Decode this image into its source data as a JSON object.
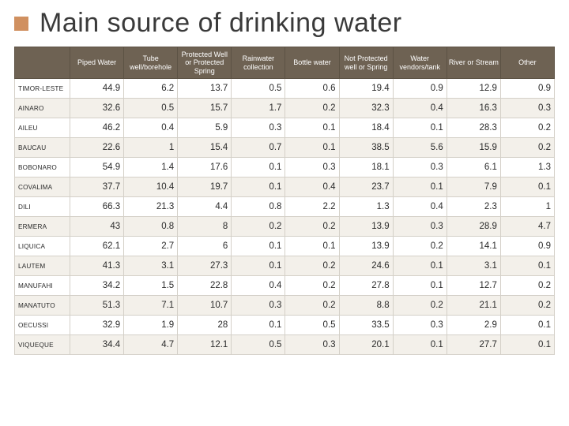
{
  "title": "Main source of drinking water",
  "columns": [
    "",
    "Piped Water",
    "Tube well/borehole",
    "Protected Well or Protected Spring",
    "Rainwater collection",
    "Bottle water",
    "Not Protected well or Spring",
    "Water vendors/tank",
    "River or Stream",
    "Other"
  ],
  "rows": [
    {
      "label": "TIMOR-LESTE",
      "v": [
        "44.9",
        "6.2",
        "13.7",
        "0.5",
        "0.6",
        "19.4",
        "0.9",
        "12.9",
        "0.9"
      ]
    },
    {
      "label": "AINARO",
      "v": [
        "32.6",
        "0.5",
        "15.7",
        "1.7",
        "0.2",
        "32.3",
        "0.4",
        "16.3",
        "0.3"
      ]
    },
    {
      "label": "AILEU",
      "v": [
        "46.2",
        "0.4",
        "5.9",
        "0.3",
        "0.1",
        "18.4",
        "0.1",
        "28.3",
        "0.2"
      ]
    },
    {
      "label": "BAUCAU",
      "v": [
        "22.6",
        "1",
        "15.4",
        "0.7",
        "0.1",
        "38.5",
        "5.6",
        "15.9",
        "0.2"
      ]
    },
    {
      "label": "BOBONARO",
      "v": [
        "54.9",
        "1.4",
        "17.6",
        "0.1",
        "0.3",
        "18.1",
        "0.3",
        "6.1",
        "1.3"
      ]
    },
    {
      "label": "COVALIMA",
      "v": [
        "37.7",
        "10.4",
        "19.7",
        "0.1",
        "0.4",
        "23.7",
        "0.1",
        "7.9",
        "0.1"
      ]
    },
    {
      "label": "DILI",
      "v": [
        "66.3",
        "21.3",
        "4.4",
        "0.8",
        "2.2",
        "1.3",
        "0.4",
        "2.3",
        "1"
      ]
    },
    {
      "label": "ERMERA",
      "v": [
        "43",
        "0.8",
        "8",
        "0.2",
        "0.2",
        "13.9",
        "0.3",
        "28.9",
        "4.7"
      ]
    },
    {
      "label": "LIQUICA",
      "v": [
        "62.1",
        "2.7",
        "6",
        "0.1",
        "0.1",
        "13.9",
        "0.2",
        "14.1",
        "0.9"
      ]
    },
    {
      "label": "LAUTEM",
      "v": [
        "41.3",
        "3.1",
        "27.3",
        "0.1",
        "0.2",
        "24.6",
        "0.1",
        "3.1",
        "0.1"
      ]
    },
    {
      "label": "MANUFAHI",
      "v": [
        "34.2",
        "1.5",
        "22.8",
        "0.4",
        "0.2",
        "27.8",
        "0.1",
        "12.7",
        "0.2"
      ]
    },
    {
      "label": "MANATUTO",
      "v": [
        "51.3",
        "7.1",
        "10.7",
        "0.3",
        "0.2",
        "8.8",
        "0.2",
        "21.1",
        "0.2"
      ]
    },
    {
      "label": "OECUSSI",
      "v": [
        "32.9",
        "1.9",
        "28",
        "0.1",
        "0.5",
        "33.5",
        "0.3",
        "2.9",
        "0.1"
      ]
    },
    {
      "label": "VIQUEQUE",
      "v": [
        "34.4",
        "4.7",
        "12.1",
        "0.5",
        "0.3",
        "20.1",
        "0.1",
        "27.7",
        "0.1"
      ]
    }
  ],
  "styling": {
    "header_bg": "#6e6253",
    "header_fg": "#ffffff",
    "row_alt_bg": "#f3f0ea",
    "row_bg": "#ffffff",
    "border_color": "#d4d0c8",
    "accent_color": "#d09060",
    "title_color": "#3a3a3a",
    "title_fontsize": 34,
    "header_fontsize": 9,
    "cell_fontsize": 11.5,
    "label_fontsize": 8.2
  }
}
